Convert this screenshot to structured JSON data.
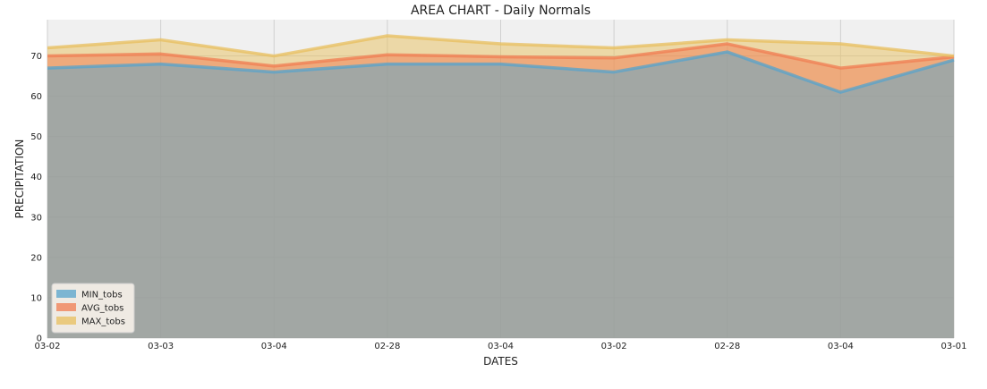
{
  "chart_data": {
    "type": "area",
    "title": "AREA CHART - Daily Normals",
    "xlabel": "DATES",
    "ylabel": "PRECIPITATION",
    "categories": [
      "03-02",
      "03-03",
      "03-04",
      "02-28",
      "03-04",
      "03-02",
      "02-28",
      "03-04",
      "03-01"
    ],
    "ylim": [
      0,
      79
    ],
    "yticks": [
      0,
      10,
      20,
      30,
      40,
      50,
      60,
      70
    ],
    "stacked": false,
    "grid": true,
    "legend_position": "lower-left",
    "series": [
      {
        "name": "MIN_tobs",
        "color": "#56a3cc",
        "values": [
          67,
          68,
          66,
          68,
          68,
          66,
          71,
          61,
          69
        ]
      },
      {
        "name": "AVG_tobs",
        "color": "#f07c52",
        "values": [
          70,
          70.5,
          67.5,
          70.3,
          69.8,
          69.5,
          73,
          67,
          69.8
        ]
      },
      {
        "name": "MAX_tobs",
        "color": "#e8bf5e",
        "values": [
          72,
          74,
          70,
          75,
          73,
          72,
          74,
          73,
          70
        ]
      }
    ]
  }
}
